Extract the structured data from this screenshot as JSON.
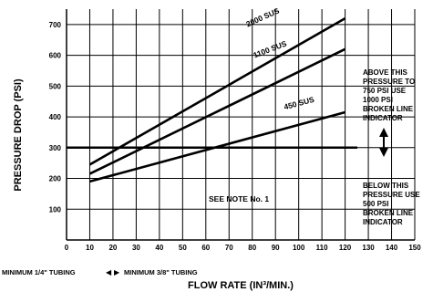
{
  "chart_data": {
    "type": "line",
    "title": "",
    "xlabel": "FLOW RATE (IN³/MIN.)",
    "ylabel": "PRESSURE DROP (PSI)",
    "xlim": [
      0,
      150
    ],
    "ylim": [
      0,
      750
    ],
    "grid": true,
    "x_ticks": [
      0,
      10,
      20,
      30,
      40,
      50,
      60,
      70,
      80,
      90,
      100,
      110,
      120,
      130,
      140,
      150
    ],
    "y_ticks": [
      100,
      200,
      300,
      400,
      500,
      600,
      700
    ],
    "series": [
      {
        "name": "2000 SUS",
        "x": [
          10,
          120
        ],
        "y": [
          245,
          720
        ]
      },
      {
        "name": "1100 SUS",
        "x": [
          10,
          120
        ],
        "y": [
          215,
          620
        ]
      },
      {
        "name": "450 SUS",
        "x": [
          10,
          120
        ],
        "y": [
          190,
          415
        ]
      }
    ],
    "threshold": {
      "y": 300
    },
    "annotations": {
      "above": [
        "ABOVE THIS",
        "PRESSURE TO",
        "750 PSI USE",
        "1000 PSI",
        "BROKEN LINE",
        "INDICATOR"
      ],
      "below": [
        "BELOW THIS",
        "PRESSURE USE",
        "500 PSI",
        "BROKEN LINE",
        "INDICATOR"
      ],
      "note": "SEE NOTE No. 1",
      "tubing_left": "MINIMUM 1/4\" TUBING",
      "tubing_right": "MINIMUM 3/8\" TUBING"
    }
  }
}
